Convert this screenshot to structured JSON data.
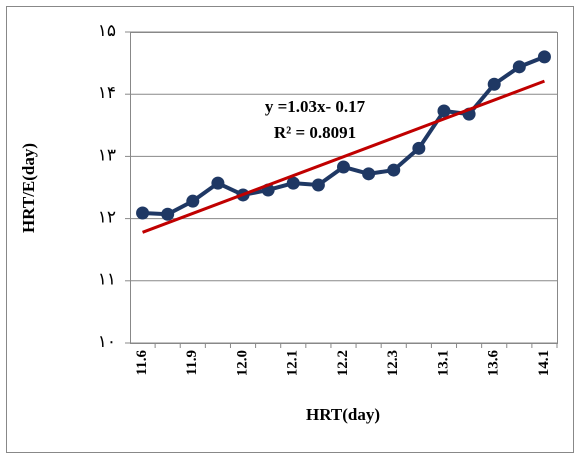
{
  "chart_data": {
    "type": "line",
    "x_label": "HRT(day)",
    "y_label": "HRT/E(day)",
    "categories": [
      "11.6",
      null,
      "11.9",
      null,
      "12.0",
      null,
      "12.1",
      null,
      "12.2",
      null,
      "12.3",
      null,
      "13.1",
      null,
      "13.6",
      null,
      "14.1"
    ],
    "series": [
      {
        "name": "HRT/E",
        "color": "#1f3864",
        "values": [
          12.09,
          12.07,
          12.28,
          12.57,
          12.38,
          12.46,
          12.57,
          12.54,
          12.83,
          12.72,
          12.78,
          13.13,
          13.73,
          13.68,
          14.16,
          14.44,
          14.6
        ]
      }
    ],
    "trend": {
      "color": "#c00000",
      "values": [
        11.78,
        14.21
      ]
    },
    "annotations": [
      "y =1.03x- 0.17",
      "R² = 0.8091"
    ],
    "ylim": [
      10,
      15
    ],
    "yticks": [
      {
        "value": 10,
        "label": "۱۰"
      },
      {
        "value": 11,
        "label": "۱۱"
      },
      {
        "value": 12,
        "label": "۱۲"
      },
      {
        "value": 13,
        "label": "۱۳"
      },
      {
        "value": 14,
        "label": "۱۴"
      },
      {
        "value": 15,
        "label": "۱۵"
      }
    ],
    "grid": true
  }
}
